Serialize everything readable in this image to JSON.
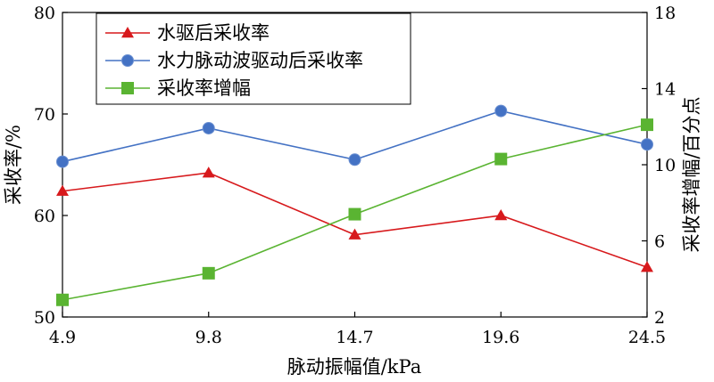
{
  "chart_data": {
    "type": "line",
    "x": [
      4.9,
      9.8,
      14.7,
      19.6,
      24.5
    ],
    "x_tick_labels": [
      "4.9",
      "9.8",
      "14.7",
      "19.6",
      "24.5"
    ],
    "xlabel": "脉动振幅值/kPa",
    "ylabel_left": "采收率/%",
    "ylabel_right": "采收率增幅/百分点",
    "ylim_left": [
      50,
      80
    ],
    "ylim_right": [
      2,
      18
    ],
    "y_ticks_left": [
      "50",
      "60",
      "70",
      "80"
    ],
    "y_ticks_right": [
      "2",
      "6",
      "10",
      "14",
      "18"
    ],
    "grid": false,
    "legend_position": "top-left",
    "series": [
      {
        "name": "水驱后采收率",
        "axis": "left",
        "marker": "triangle",
        "color": "#d7191c",
        "values": [
          62.4,
          64.2,
          58.1,
          60.0,
          54.9
        ]
      },
      {
        "name": "水力脉动波驱动后采收率",
        "axis": "left",
        "marker": "circle",
        "color": "#4472c4",
        "values": [
          65.3,
          68.6,
          65.5,
          70.3,
          67.0
        ]
      },
      {
        "name": "采收率增幅",
        "axis": "right",
        "marker": "square",
        "color": "#5ab432",
        "values": [
          2.9,
          4.3,
          7.4,
          10.3,
          12.1
        ]
      }
    ]
  }
}
